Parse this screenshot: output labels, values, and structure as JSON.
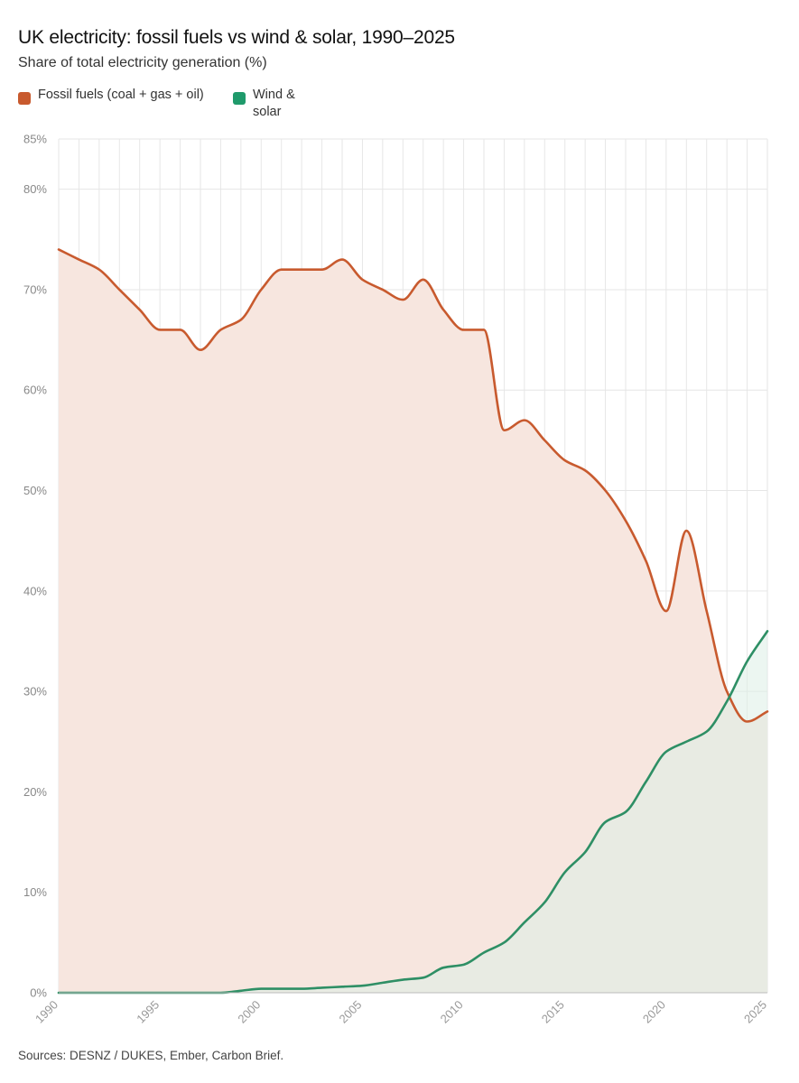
{
  "chart_data": {
    "type": "area",
    "title": "UK electricity: fossil fuels vs wind & solar, 1990–2025",
    "subtitle": "Share of total electricity generation (%)",
    "source": "Sources: DESNZ / DUKES, Ember, Carbon Brief.",
    "x": [
      1990,
      1991,
      1992,
      1993,
      1994,
      1995,
      1996,
      1997,
      1998,
      1999,
      2000,
      2001,
      2002,
      2003,
      2004,
      2005,
      2006,
      2007,
      2008,
      2009,
      2010,
      2011,
      2012,
      2013,
      2014,
      2015,
      2016,
      2017,
      2018,
      2019,
      2020,
      2021,
      2022,
      2023,
      2024,
      2025
    ],
    "x_tick_labels": [
      "1990",
      "1995",
      "2000",
      "2005",
      "2010",
      "2015",
      "2020",
      "2025"
    ],
    "y_tick_labels": [
      "0%",
      "10%",
      "20%",
      "30%",
      "40%",
      "50%",
      "60%",
      "70%",
      "80%",
      "85%"
    ],
    "ylim": [
      0,
      85
    ],
    "grid": true,
    "legend_position": "top-left",
    "series": [
      {
        "name": "Fossil fuels (coal + gas + oil)",
        "color": "#c85a2e",
        "fill": "#f7e6df",
        "values": [
          74,
          73,
          72,
          70,
          68,
          66,
          66,
          64,
          66,
          67,
          70,
          72,
          72,
          72,
          73,
          71,
          70,
          69,
          71,
          68,
          66,
          66,
          56,
          57,
          55,
          53,
          52,
          50,
          47,
          43,
          38,
          46,
          38,
          30,
          27,
          28
        ]
      },
      {
        "name": "Wind & solar",
        "color": "#2e8f65",
        "fill": "#dcefe5",
        "values": [
          0,
          0,
          0,
          0,
          0,
          0,
          0,
          0,
          0,
          0.2,
          0.4,
          0.4,
          0.4,
          0.5,
          0.6,
          0.7,
          1.0,
          1.3,
          1.5,
          2.5,
          2.8,
          4.0,
          5.0,
          7.0,
          9.0,
          12.0,
          14.0,
          17.0,
          18.0,
          21.0,
          24.0,
          25.0,
          26.0,
          29.0,
          33.0,
          36.0
        ]
      }
    ]
  }
}
